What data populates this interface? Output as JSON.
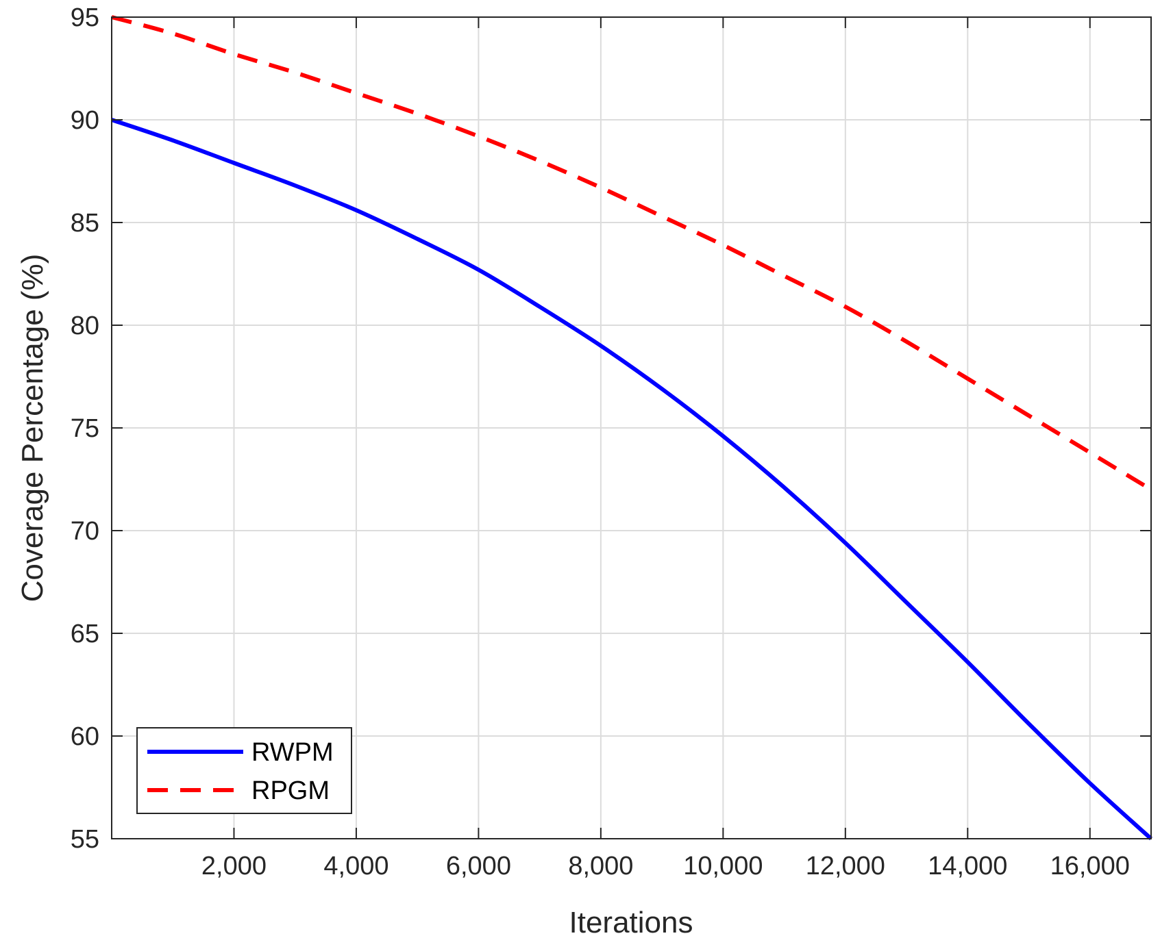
{
  "chart_data": {
    "type": "line",
    "title": "",
    "xlabel": "Iterations",
    "ylabel": "Coverage Percentage (%)",
    "xlim": [
      0,
      17000
    ],
    "ylim": [
      55,
      95
    ],
    "xticks": [
      2000,
      4000,
      6000,
      8000,
      10000,
      12000,
      14000,
      16000
    ],
    "xtick_labels": [
      "2,000",
      "4,000",
      "6,000",
      "8,000",
      "10,000",
      "12,000",
      "14,000",
      "16,000"
    ],
    "yticks": [
      55,
      60,
      65,
      70,
      75,
      80,
      85,
      90,
      95
    ],
    "ytick_labels": [
      "55",
      "60",
      "65",
      "70",
      "75",
      "80",
      "85",
      "90",
      "95"
    ],
    "grid": true,
    "legend_position": "bottom-left",
    "series": [
      {
        "name": "RWPM",
        "color": "#0000ff",
        "style": "solid",
        "x": [
          0,
          1000,
          2000,
          3000,
          4000,
          5000,
          6000,
          7000,
          8000,
          9000,
          10000,
          11000,
          12000,
          13000,
          14000,
          15000,
          16000,
          17000
        ],
        "y": [
          90.0,
          89.0,
          87.9,
          86.8,
          85.6,
          84.2,
          82.7,
          80.9,
          79.0,
          76.9,
          74.6,
          72.1,
          69.4,
          66.5,
          63.6,
          60.6,
          57.7,
          55.0
        ]
      },
      {
        "name": "RPGM",
        "color": "#ff0000",
        "style": "dashed",
        "x": [
          0,
          1000,
          2000,
          3000,
          4000,
          5000,
          6000,
          7000,
          8000,
          9000,
          10000,
          11000,
          12000,
          13000,
          14000,
          15000,
          16000,
          17000
        ],
        "y": [
          95.0,
          94.2,
          93.2,
          92.3,
          91.3,
          90.3,
          89.2,
          88.0,
          86.7,
          85.3,
          83.9,
          82.4,
          80.9,
          79.2,
          77.4,
          75.6,
          73.8,
          72.0
        ]
      }
    ]
  }
}
